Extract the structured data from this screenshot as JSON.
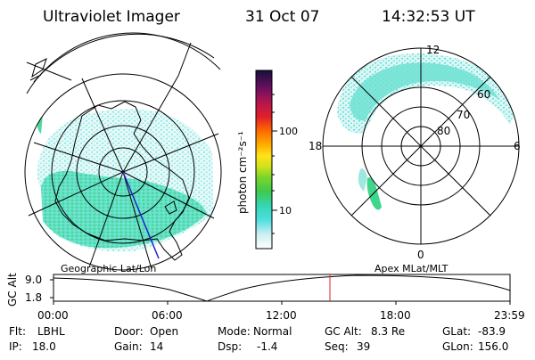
{
  "header": {
    "instrument": "Ultraviolet Imager",
    "date": "31 Oct 07",
    "time": "14:32:53 UT"
  },
  "colorbar": {
    "unit_label": "photon cm⁻²s⁻¹",
    "ticks": [
      "100",
      "10"
    ]
  },
  "left_map": {
    "caption": "Geographic Lat/Lon"
  },
  "right_map": {
    "caption": "Apex  MLat/MLT",
    "mlt_labels": {
      "top": "12",
      "left": "18",
      "right": "6",
      "bottom": "0"
    },
    "lat_labels": [
      "60",
      "70",
      "80"
    ]
  },
  "altitude_plot": {
    "ylabel": "GC Alt",
    "yticks": [
      "9.0",
      "1.8"
    ],
    "xticks": [
      "00:00",
      "06:00",
      "12:00",
      "18:00",
      "23:59"
    ],
    "marker_time": "14:32:53"
  },
  "info": {
    "rows": [
      [
        {
          "k": "Flt:",
          "v": "LBHL"
        },
        {
          "k": "Door:",
          "v": "Open"
        },
        {
          "k": "Mode:",
          "v": "Normal"
        },
        {
          "k": "GC Alt:",
          "v": "8.3 Re"
        },
        {
          "k": "GLat:",
          "v": "-83.9"
        }
      ],
      [
        {
          "k": "IP:",
          "v": "18.0"
        },
        {
          "k": "Gain:",
          "v": "14"
        },
        {
          "k": "Dsp:",
          "v": "-1.4"
        },
        {
          "k": "Seq:",
          "v": "39"
        },
        {
          "k": "GLon:",
          "v": "156.0"
        }
      ]
    ]
  }
}
